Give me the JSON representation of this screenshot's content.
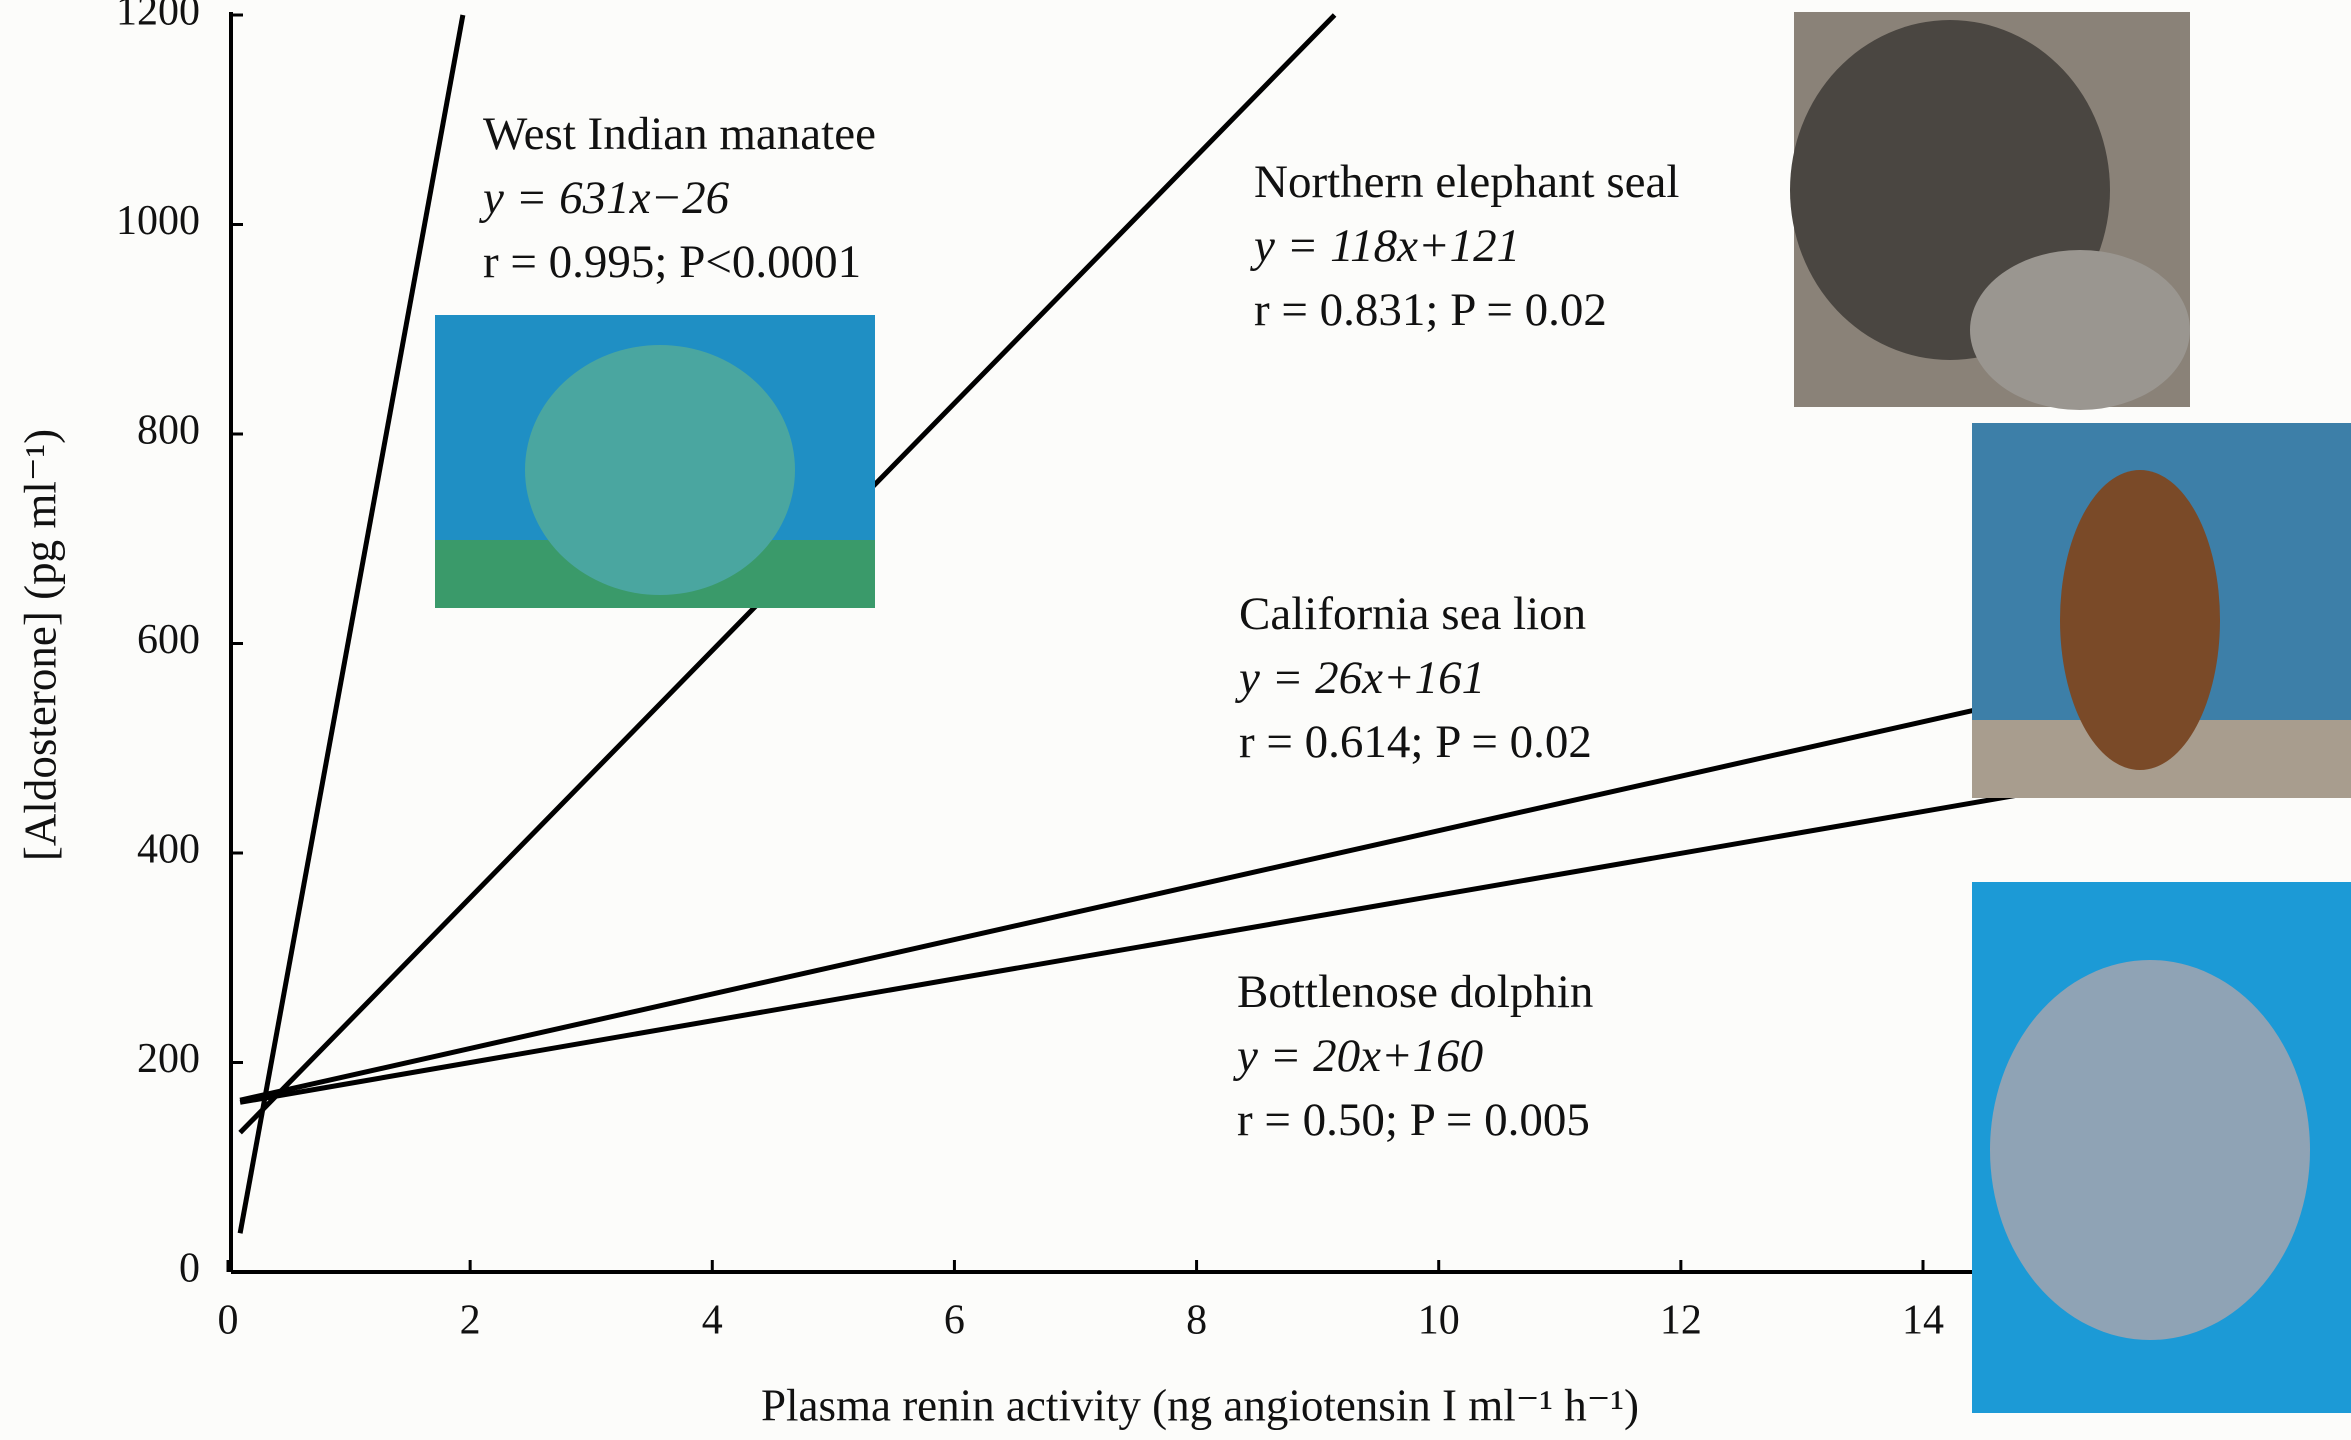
{
  "chart_data": {
    "type": "line",
    "x_label": "Plasma renin activity (ng angiotensin I ml⁻¹ h⁻¹)",
    "y_label": "[Aldosterone] (pg ml⁻¹)",
    "xlim": [
      0,
      14
    ],
    "ylim": [
      0,
      1200
    ],
    "xticks": [
      0,
      2,
      4,
      6,
      8,
      10,
      12,
      14
    ],
    "yticks": [
      0,
      200,
      400,
      600,
      800,
      1000,
      1200
    ],
    "series": [
      {
        "name": "West Indian manatee",
        "color": "#000000",
        "x": [
          0.1,
          1.94
        ],
        "values": [
          37,
          1200
        ],
        "equation": "y = 631x−26",
        "stats": "r = 0.995; P<0.0001"
      },
      {
        "name": "Northern elephant seal",
        "color": "#000000",
        "x": [
          0.1,
          9.14
        ],
        "values": [
          133,
          1200
        ],
        "equation": "y = 118x+121",
        "stats": "r = 0.831; P = 0.02"
      },
      {
        "name": "California sea lion",
        "color": "#000000",
        "x": [
          0.1,
          14.41
        ],
        "values": [
          164,
          536
        ],
        "equation": "y = 26x+161",
        "stats": "r = 0.614; P = 0.02"
      },
      {
        "name": "Bottlenose dolphin",
        "color": "#000000",
        "x": [
          0.1,
          14.82
        ],
        "values": [
          162,
          456
        ],
        "equation": "y = 20x+160",
        "stats": "r = 0.50; P = 0.005"
      }
    ]
  }
}
